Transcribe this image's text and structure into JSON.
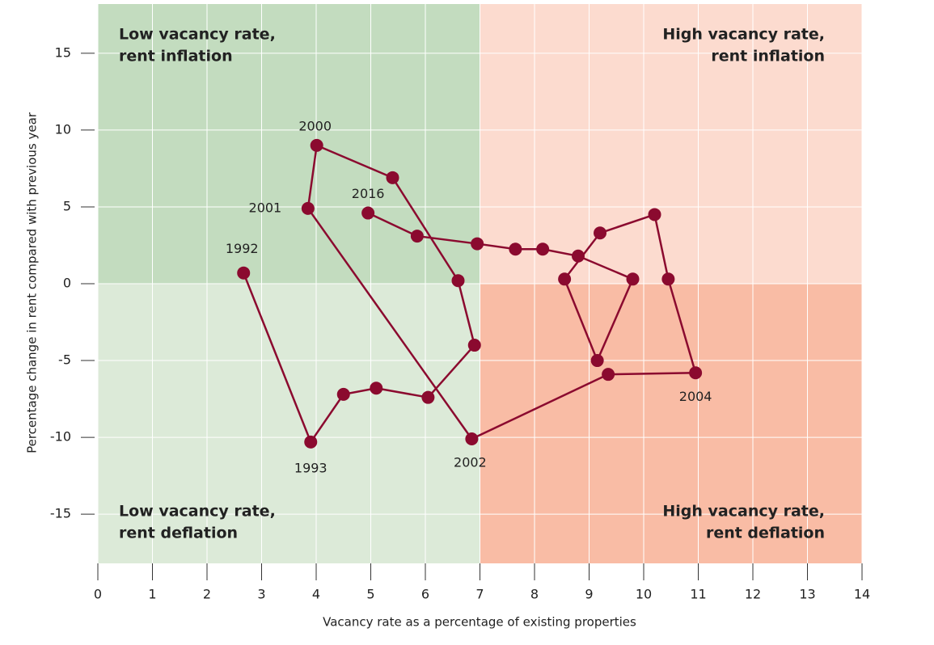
{
  "chart_data": {
    "type": "connected-scatter",
    "x_label": "Vacancy rate as a percentage of existing properties",
    "y_label": "Percentage change in rent compared with previous year",
    "xlim": [
      0,
      14
    ],
    "ylim": [
      -18.2,
      18.2
    ],
    "xticks": [
      0,
      1,
      2,
      3,
      4,
      5,
      6,
      7,
      8,
      9,
      10,
      11,
      12,
      13,
      14
    ],
    "yticks": [
      15,
      10,
      5,
      0,
      -5,
      -10,
      -15
    ],
    "grid": true,
    "color": "#8b0a2f",
    "split": {
      "x": 7,
      "y": 0
    },
    "quadrants": [
      {
        "lines": [
          "Low vacancy rate,",
          "rent inflation"
        ],
        "fill": "#c3dcbf",
        "text_color": "#2e9a46",
        "corner": "top-left"
      },
      {
        "lines": [
          "High vacancy rate,",
          "rent inflation"
        ],
        "fill": "#fcdbcf",
        "text_color": "#e2323a",
        "corner": "top-right"
      },
      {
        "lines": [
          "Low vacancy rate,",
          "rent deflation"
        ],
        "fill": "#dcead8",
        "text_color": "#2e9a46",
        "corner": "bottom-left"
      },
      {
        "lines": [
          "High vacancy rate,",
          "rent deflation"
        ],
        "fill": "#f9bca5",
        "text_color": "#e2323a",
        "corner": "bottom-right"
      }
    ],
    "x": [
      2.67,
      3.9,
      4.5,
      5.1,
      6.05,
      6.9,
      6.6,
      5.4,
      4.01,
      3.85,
      6.85,
      9.35,
      10.95,
      10.45,
      10.2,
      9.2,
      8.55,
      9.15,
      9.8,
      8.8,
      8.15,
      7.65,
      6.95,
      5.85,
      4.95
    ],
    "y": [
      0.7,
      -10.3,
      -7.2,
      -6.8,
      -7.4,
      -4.0,
      0.2,
      6.9,
      9.0,
      4.9,
      -10.1,
      -5.9,
      -5.8,
      0.3,
      4.5,
      3.3,
      0.3,
      -5.0,
      0.3,
      1.8,
      2.25,
      2.25,
      2.6,
      3.1,
      4.6
    ],
    "point_labels": [
      "1992",
      "1993",
      null,
      null,
      null,
      null,
      null,
      null,
      "2000",
      "2001",
      "2002",
      null,
      "2004",
      null,
      null,
      null,
      null,
      null,
      null,
      null,
      null,
      null,
      null,
      null,
      "2016"
    ]
  }
}
